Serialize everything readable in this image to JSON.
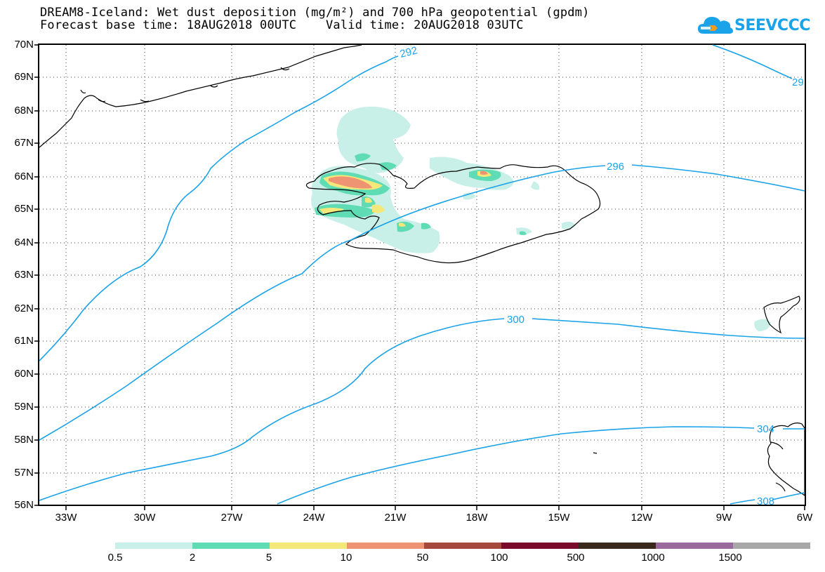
{
  "title": {
    "line1": "DREAM8-Iceland: Wet dust deposition (mg/m²) and 700 hPa geopotential (gpdm)",
    "line2": "Forecast base time: 18AUG2018 00UTC    Valid time: 20AUG2018 03UTC"
  },
  "logo": {
    "text": "SEEVCCC",
    "icon": "cloud-icon",
    "color": "#1aa3e8"
  },
  "map": {
    "lat_labels": [
      "70N",
      "69N",
      "68N",
      "67N",
      "66N",
      "65N",
      "64N",
      "63N",
      "62N",
      "61N",
      "60N",
      "59N",
      "58N",
      "57N",
      "56N"
    ],
    "lon_labels": [
      "33W",
      "30W",
      "27W",
      "24W",
      "21W",
      "18W",
      "15W",
      "12W",
      "9W",
      "6W"
    ],
    "contour_color": "#1aa3e8",
    "contour_labels": [
      "292",
      "29",
      "296",
      "300",
      "304",
      "308"
    ]
  },
  "legend": {
    "colors": [
      "#c8f0e8",
      "#5fdcb4",
      "#f4e87a",
      "#ee9473",
      "#a5493c",
      "#7a0a2c",
      "#3a2a1e",
      "#9a6a9e",
      "#a8a8a8"
    ],
    "labels": [
      "0.5",
      "2",
      "5",
      "10",
      "50",
      "100",
      "500",
      "1000",
      "1500"
    ]
  }
}
